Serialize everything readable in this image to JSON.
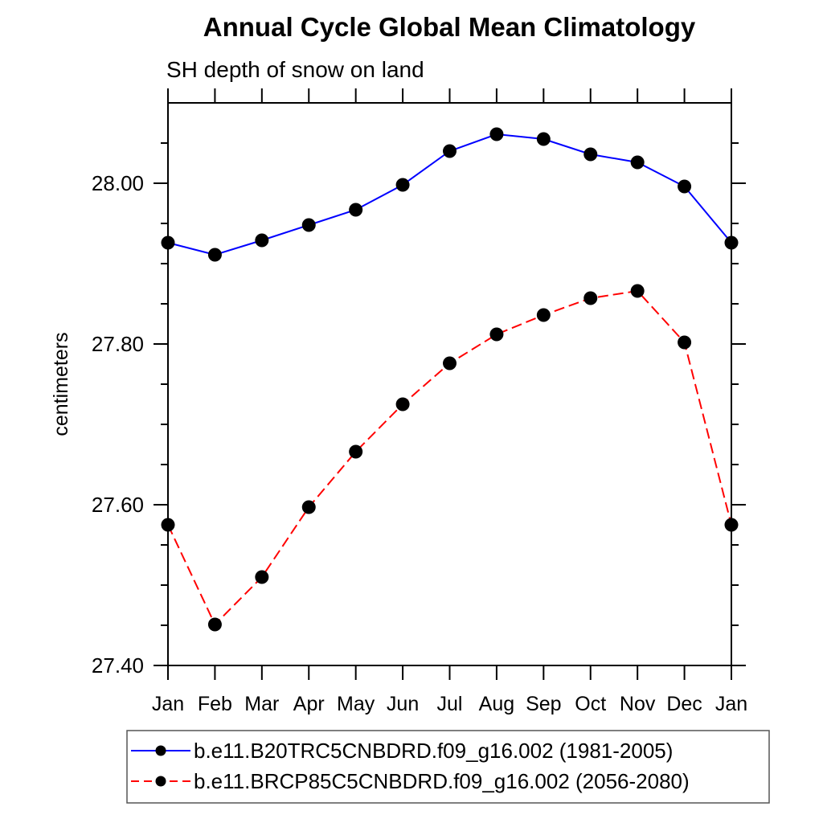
{
  "chart_data": {
    "type": "line",
    "title": "Annual Cycle Global Mean Climatology",
    "subtitle": "SH depth of snow on land",
    "xlabel": "",
    "ylabel": "centimeters",
    "categories": [
      "Jan",
      "Feb",
      "Mar",
      "Apr",
      "May",
      "Jun",
      "Jul",
      "Aug",
      "Sep",
      "Oct",
      "Nov",
      "Dec",
      "Jan"
    ],
    "ylim": [
      27.4,
      28.1
    ],
    "ytick_major": [
      27.4,
      27.6,
      27.8,
      28.0
    ],
    "ytick_labels": [
      "27.40",
      "27.60",
      "27.80",
      "28.00"
    ],
    "ytick_minor_step": 0.05,
    "grid": false,
    "legend_position": "bottom",
    "marker": "filled-circle",
    "marker_color": "#000000",
    "series": [
      {
        "name": "b.e11.B20TRC5CNBDRD.f09_g16.002 (1981-2005)",
        "color": "#0000ff",
        "style": "solid",
        "values": [
          27.926,
          27.911,
          27.929,
          27.948,
          27.967,
          27.998,
          28.04,
          28.061,
          28.055,
          28.036,
          28.026,
          27.996,
          27.926
        ]
      },
      {
        "name": "b.e11.BRCP85C5CNBDRD.f09_g16.002 (2056-2080)",
        "color": "#ff0000",
        "style": "dashed",
        "values": [
          27.575,
          27.451,
          27.51,
          27.597,
          27.666,
          27.725,
          27.776,
          27.812,
          27.836,
          27.857,
          27.866,
          27.802,
          27.575
        ]
      }
    ]
  }
}
